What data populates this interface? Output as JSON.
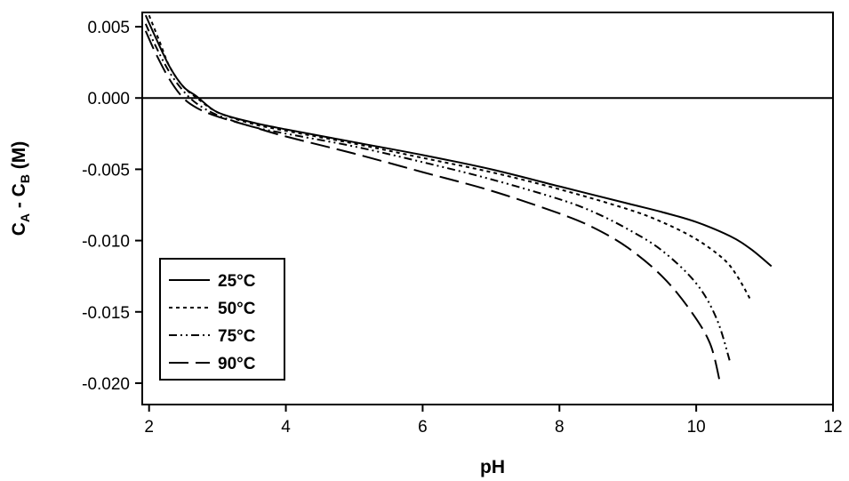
{
  "chart_data": {
    "type": "line",
    "title": "",
    "xlabel": "pH",
    "ylabel_main": "C",
    "ylabel_sub_a": "A",
    "ylabel_mid": " - C",
    "ylabel_sub_b": "B",
    "ylabel_unit": " (M)",
    "xlim": [
      1.9,
      12
    ],
    "ylim": [
      -0.0215,
      0.006
    ],
    "x_ticks": [
      2,
      4,
      6,
      8,
      10,
      12
    ],
    "x_tick_labels": [
      "2",
      "4",
      "6",
      "8",
      "10",
      "12"
    ],
    "y_ticks": [
      0.005,
      0.0,
      -0.005,
      -0.01,
      -0.015,
      -0.02
    ],
    "y_tick_labels": [
      "0.005",
      "0.000",
      "-0.005",
      "-0.010",
      "-0.015",
      "-0.020"
    ],
    "reference_line_y": 0,
    "grid": false,
    "legend_position": "bottom-left",
    "series": [
      {
        "name": "25°C",
        "dash": "solid",
        "points": [
          [
            1.95,
            0.0058
          ],
          [
            2.1,
            0.0042
          ],
          [
            2.3,
            0.0022
          ],
          [
            2.5,
            0.0008
          ],
          [
            2.7,
            0.0001
          ],
          [
            3.0,
            -0.001
          ],
          [
            3.5,
            -0.0017
          ],
          [
            4.0,
            -0.0022
          ],
          [
            5.0,
            -0.0031
          ],
          [
            6.0,
            -0.004
          ],
          [
            7.0,
            -0.005
          ],
          [
            8.0,
            -0.0062
          ],
          [
            9.0,
            -0.0074
          ],
          [
            9.5,
            -0.008
          ],
          [
            10.0,
            -0.0087
          ],
          [
            10.5,
            -0.0097
          ],
          [
            10.8,
            -0.0106
          ],
          [
            11.1,
            -0.0118
          ]
        ]
      },
      {
        "name": "50°C",
        "dash": "dotted",
        "points": [
          [
            2.0,
            0.0058
          ],
          [
            2.15,
            0.004
          ],
          [
            2.3,
            0.0022
          ],
          [
            2.5,
            0.0008
          ],
          [
            2.7,
            0.0
          ],
          [
            3.0,
            -0.001
          ],
          [
            3.5,
            -0.0018
          ],
          [
            4.0,
            -0.0023
          ],
          [
            5.0,
            -0.0032
          ],
          [
            6.0,
            -0.0042
          ],
          [
            7.0,
            -0.0052
          ],
          [
            8.0,
            -0.0064
          ],
          [
            9.0,
            -0.0078
          ],
          [
            9.5,
            -0.0087
          ],
          [
            10.0,
            -0.0099
          ],
          [
            10.4,
            -0.0113
          ],
          [
            10.6,
            -0.0125
          ],
          [
            10.8,
            -0.0142
          ]
        ]
      },
      {
        "name": "75°C",
        "dash": "dash-dot-dot",
        "points": [
          [
            1.95,
            0.0052
          ],
          [
            2.1,
            0.0036
          ],
          [
            2.3,
            0.0018
          ],
          [
            2.5,
            0.0005
          ],
          [
            2.7,
            -0.0004
          ],
          [
            3.0,
            -0.0012
          ],
          [
            3.5,
            -0.002
          ],
          [
            4.0,
            -0.0025
          ],
          [
            5.0,
            -0.0034
          ],
          [
            6.0,
            -0.0045
          ],
          [
            7.0,
            -0.0057
          ],
          [
            8.0,
            -0.0071
          ],
          [
            8.5,
            -0.008
          ],
          [
            9.0,
            -0.0092
          ],
          [
            9.5,
            -0.0107
          ],
          [
            10.0,
            -0.013
          ],
          [
            10.3,
            -0.0155
          ],
          [
            10.5,
            -0.0186
          ]
        ]
      },
      {
        "name": "90°C",
        "dash": "long-dash",
        "points": [
          [
            1.95,
            0.0047
          ],
          [
            2.1,
            0.0031
          ],
          [
            2.3,
            0.0013
          ],
          [
            2.5,
            0.0
          ],
          [
            2.7,
            -0.0007
          ],
          [
            3.0,
            -0.0013
          ],
          [
            3.5,
            -0.002
          ],
          [
            4.0,
            -0.0027
          ],
          [
            5.0,
            -0.0039
          ],
          [
            6.0,
            -0.0052
          ],
          [
            7.0,
            -0.0065
          ],
          [
            8.0,
            -0.0081
          ],
          [
            8.5,
            -0.0091
          ],
          [
            9.0,
            -0.0105
          ],
          [
            9.5,
            -0.0125
          ],
          [
            9.9,
            -0.0148
          ],
          [
            10.2,
            -0.0172
          ],
          [
            10.35,
            -0.02
          ]
        ]
      }
    ]
  }
}
